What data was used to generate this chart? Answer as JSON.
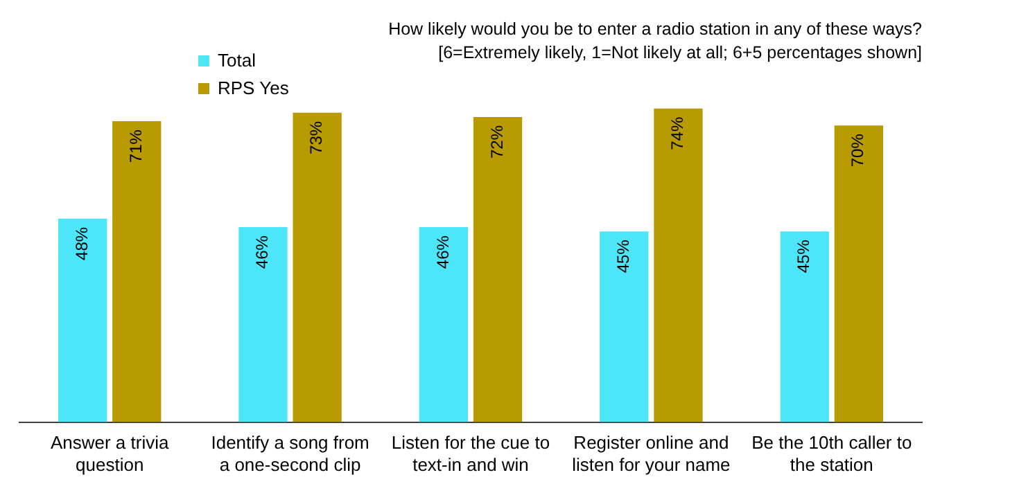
{
  "chart_data": {
    "type": "bar",
    "title": "How likely would you be to enter a radio station in any of these ways?",
    "subtitle": "[6=Extremely likely, 1=Not likely at all; 6+5 percentages shown]",
    "categories": [
      "Answer a trivia question",
      "Identify a song from a one-second clip",
      "Listen for the cue to text-in and win",
      "Register online and listen for your name",
      "Be the 10th caller to the station"
    ],
    "series": [
      {
        "name": "Total",
        "color": "#4de6f9",
        "values": [
          48,
          46,
          46,
          45,
          45
        ],
        "value_labels": [
          "48%",
          "46%",
          "46%",
          "45%",
          "45%"
        ]
      },
      {
        "name": "RPS Yes",
        "color": "#b89b00",
        "values": [
          71,
          73,
          72,
          74,
          70
        ],
        "value_labels": [
          "71%",
          "73%",
          "72%",
          "74%",
          "70%"
        ]
      }
    ],
    "tick_labels": "x",
    "grid": false,
    "legend": "top left"
  }
}
